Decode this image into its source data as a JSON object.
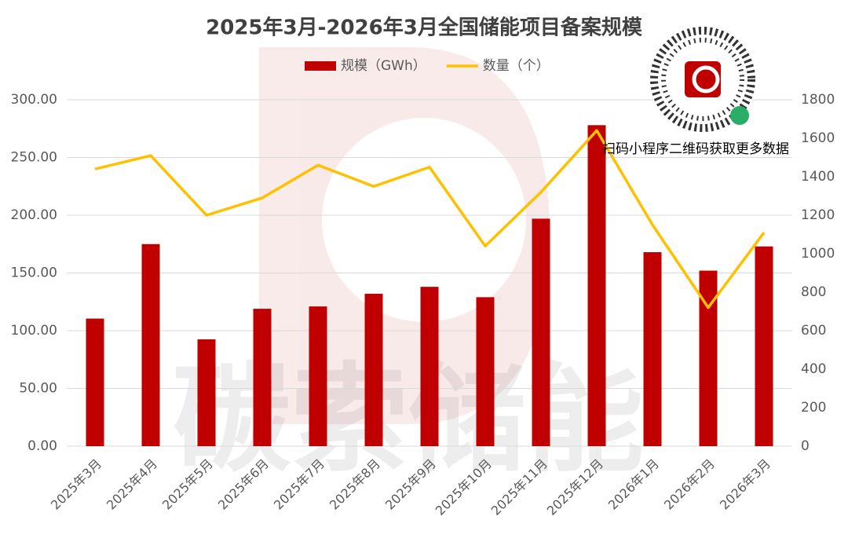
{
  "chart_data": {
    "type": "bar",
    "title": "2025年3月-2026年3月全国储能项目备案规模",
    "watermark": "碳索储能",
    "qr_caption": "扫码小程序二维码获取更多数据",
    "categories": [
      "2025年3月",
      "2025年4月",
      "2025年5月",
      "2025年6月",
      "2025年7月",
      "2025年8月",
      "2025年9月",
      "2025年10月",
      "2025年11月",
      "2025年12月",
      "2026年1月",
      "2026年2月",
      "2026年3月"
    ],
    "series": [
      {
        "name": "规模（GWh）",
        "type": "bar",
        "color": "#c00000",
        "values": [
          110.5,
          175,
          92.5,
          119,
          121,
          132,
          138,
          129,
          197,
          278,
          168,
          152,
          173
        ]
      },
      {
        "name": "数量（个）",
        "type": "line",
        "color": "#ffc000",
        "axis": "y2",
        "values": [
          1440,
          1510,
          1200,
          1290,
          1460,
          1350,
          1450,
          1040,
          1320,
          1640,
          1150,
          720,
          1110
        ]
      }
    ],
    "ylim": [
      0,
      300
    ],
    "yticks": [
      {
        "value": 0,
        "label": "0.00"
      },
      {
        "value": 50,
        "label": "50.00"
      },
      {
        "value": 100,
        "label": "100.00"
      },
      {
        "value": 150,
        "label": "150.00"
      },
      {
        "value": 200,
        "label": "200.00"
      },
      {
        "value": 250,
        "label": "250.00"
      },
      {
        "value": 300,
        "label": "300.00"
      }
    ],
    "y2lim": [
      0,
      1800
    ],
    "y2ticks": [
      0,
      200,
      400,
      600,
      800,
      1000,
      1200,
      1400,
      1600,
      1800
    ],
    "grid": true
  }
}
